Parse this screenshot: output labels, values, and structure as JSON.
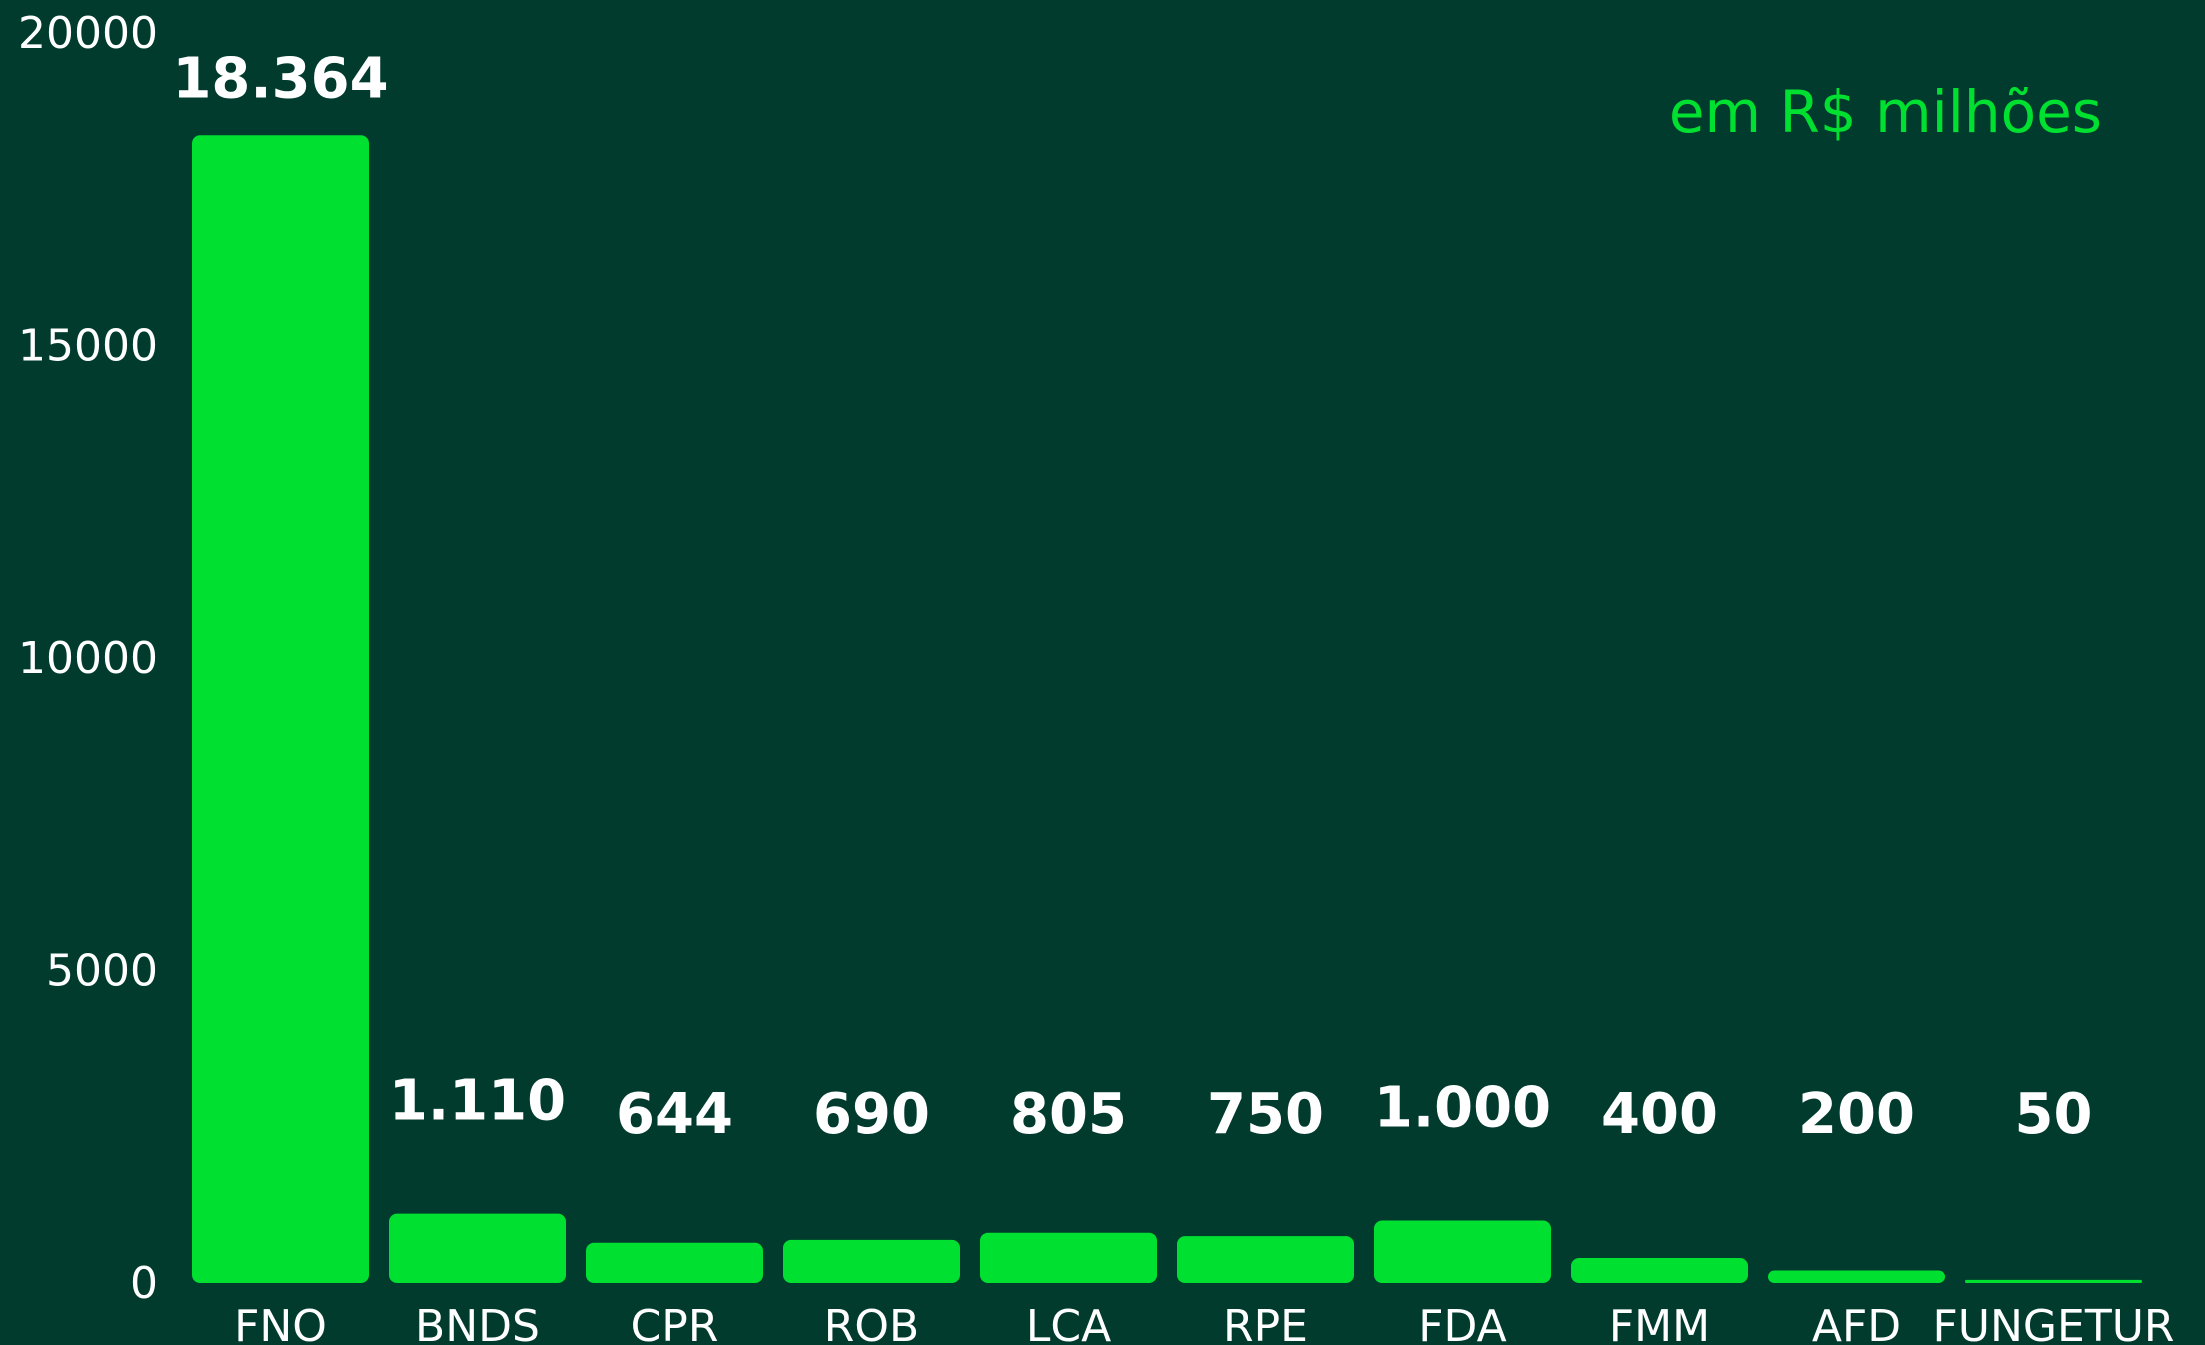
{
  "chart_data": {
    "type": "bar",
    "title": "",
    "xlabel": "",
    "ylabel": "",
    "note": "em R$ milhões",
    "categories": [
      "FNO",
      "BNDS",
      "CPR",
      "ROB",
      "LCA",
      "RPE",
      "FDA",
      "FMM",
      "AFD",
      "FUNGETUR"
    ],
    "values": [
      18364,
      1110,
      644,
      690,
      805,
      750,
      1000,
      400,
      200,
      50
    ],
    "data_labels": [
      "18.364",
      "1.110",
      "644",
      "690",
      "805",
      "750",
      "1.000",
      "400",
      "200",
      "50"
    ],
    "ylim": [
      0,
      20000
    ],
    "yticks": [
      "0",
      "5000",
      "10000",
      "15000",
      "20000"
    ],
    "ytick_values": [
      0,
      5000,
      10000,
      15000,
      20000
    ],
    "grid": false,
    "legend": "none",
    "bar_color": "#00e030",
    "background_color": "#003b2e",
    "text_color": "#ffffff"
  }
}
